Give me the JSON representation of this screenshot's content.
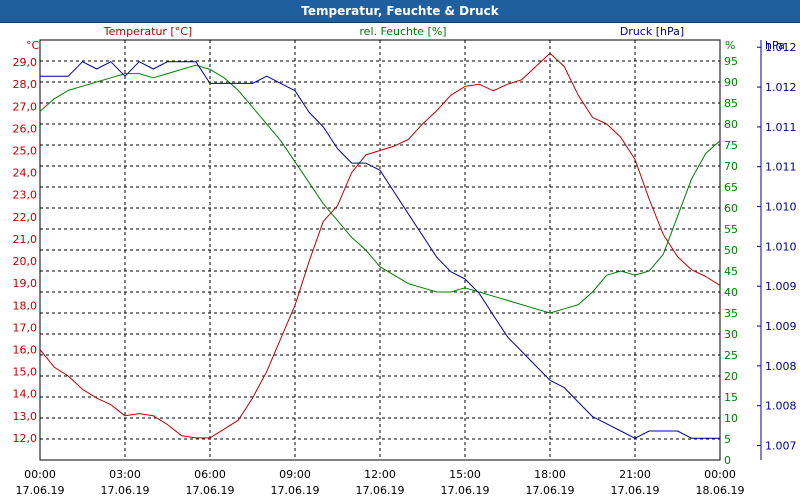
{
  "window": {
    "title": "Temperatur, Feuchte & Druck"
  },
  "chart_data": {
    "type": "line",
    "title": "Temperatur, Feuchte & Druck",
    "x_ticks": [
      {
        "time": "00:00",
        "date": "17.06.19"
      },
      {
        "time": "03:00",
        "date": "17.06.19"
      },
      {
        "time": "06:00",
        "date": "17.06.19"
      },
      {
        "time": "09:00",
        "date": "17.06.19"
      },
      {
        "time": "12:00",
        "date": "17.06.19"
      },
      {
        "time": "15:00",
        "date": "17.06.19"
      },
      {
        "time": "18:00",
        "date": "17.06.19"
      },
      {
        "time": "21:00",
        "date": "17.06.19"
      },
      {
        "time": "00:00",
        "date": "18.06.19"
      }
    ],
    "xlim_hours": [
      0,
      24
    ],
    "colors": {
      "temperature": "#c00000",
      "humidity": "#008000",
      "pressure": "#0000a0",
      "title_bar": "#1e5fa0",
      "grid": "#000000"
    },
    "axes": {
      "temperature": {
        "label": "Temperatur [°C]",
        "unit": "°C",
        "ylim": [
          11.0,
          30.0
        ],
        "ticks": [
          "12,0",
          "13,0",
          "14,0",
          "15,0",
          "16,0",
          "17,0",
          "18,0",
          "19,0",
          "20,0",
          "21,0",
          "22,0",
          "23,0",
          "24,0",
          "25,0",
          "26,0",
          "27,0",
          "28,0",
          "29,0"
        ],
        "tick_values": [
          12,
          13,
          14,
          15,
          16,
          17,
          18,
          19,
          20,
          21,
          22,
          23,
          24,
          25,
          26,
          27,
          28,
          29
        ]
      },
      "humidity": {
        "label": "rel. Feuchte [%]",
        "unit": "%",
        "ylim": [
          0,
          100
        ],
        "ticks": [
          "0",
          "5",
          "10",
          "15",
          "20",
          "25",
          "30",
          "35",
          "40",
          "45",
          "50",
          "55",
          "60",
          "65",
          "70",
          "75",
          "80",
          "85",
          "90",
          "95"
        ],
        "tick_values": [
          0,
          5,
          10,
          15,
          20,
          25,
          30,
          35,
          40,
          45,
          50,
          55,
          60,
          65,
          70,
          75,
          80,
          85,
          90,
          95
        ]
      },
      "pressure": {
        "label": "Druck [hPa]",
        "unit": "hPa",
        "ylim": [
          1006.8,
          1012.6
        ],
        "ticks": [
          "1.007",
          "1.008",
          "1.008",
          "1.009",
          "1.009",
          "1.010",
          "1.010",
          "1.011",
          "1.011",
          "1.012",
          "1.012"
        ],
        "tick_values": [
          1007.0,
          1007.55,
          1008.1,
          1008.65,
          1009.2,
          1009.75,
          1010.3,
          1010.85,
          1011.4,
          1011.95,
          1012.5
        ]
      }
    },
    "series": [
      {
        "name": "Temperatur",
        "axis": "temperature",
        "unit": "°C",
        "x": [
          0,
          0.5,
          1,
          1.5,
          2,
          2.5,
          3,
          3.5,
          4,
          4.5,
          5,
          5.5,
          6,
          6.5,
          7,
          7.5,
          8,
          8.5,
          9,
          9.5,
          10,
          10.5,
          11,
          11.5,
          12,
          12.5,
          13,
          13.5,
          14,
          14.5,
          15,
          15.5,
          16,
          16.5,
          17,
          17.5,
          18,
          18.5,
          19,
          19.5,
          20,
          20.5,
          21,
          21.5,
          22,
          22.5,
          23,
          23.5,
          24
        ],
        "values": [
          16.0,
          15.2,
          14.8,
          14.2,
          13.8,
          13.5,
          13.0,
          13.1,
          13.0,
          12.6,
          12.1,
          12.0,
          12.0,
          12.4,
          12.8,
          13.8,
          15.0,
          16.5,
          18.0,
          20.0,
          21.8,
          22.5,
          24.0,
          24.8,
          25.0,
          25.2,
          25.5,
          26.2,
          26.8,
          27.5,
          27.9,
          28.0,
          27.7,
          28.0,
          28.2,
          28.8,
          29.4,
          28.8,
          27.5,
          26.5,
          26.2,
          25.6,
          24.6,
          22.8,
          21.2,
          20.2,
          19.6,
          19.3,
          18.9
        ]
      },
      {
        "name": "rel. Feuchte",
        "axis": "humidity",
        "unit": "%",
        "x": [
          0,
          0.5,
          1,
          1.5,
          2,
          2.5,
          3,
          3.5,
          4,
          4.5,
          5,
          5.5,
          6,
          6.5,
          7,
          7.5,
          8,
          8.5,
          9,
          9.5,
          10,
          10.5,
          11,
          11.5,
          12,
          12.5,
          13,
          13.5,
          14,
          14.5,
          15,
          15.5,
          16,
          16.5,
          17,
          17.5,
          18,
          18.5,
          19,
          19.5,
          20,
          20.5,
          21,
          21.5,
          22,
          22.5,
          23,
          23.5,
          24
        ],
        "values": [
          83,
          86,
          88,
          89,
          90,
          91,
          92,
          92,
          91,
          92,
          93,
          94,
          93,
          91,
          88,
          84,
          80,
          76,
          71,
          66,
          61,
          57,
          53,
          50,
          46,
          44,
          42,
          41,
          40,
          40,
          41,
          40,
          39,
          38,
          37,
          36,
          35,
          36,
          37,
          40,
          44,
          45,
          44,
          45,
          49,
          58,
          67,
          73,
          76
        ]
      },
      {
        "name": "Druck",
        "axis": "pressure",
        "unit": "hPa",
        "x": [
          0,
          0.5,
          1,
          1.5,
          2,
          2.5,
          3,
          3.5,
          4,
          4.5,
          5,
          5.5,
          6,
          6.5,
          7,
          7.5,
          8,
          8.5,
          9,
          9.5,
          10,
          10.5,
          11,
          11.5,
          12,
          12.5,
          13,
          13.5,
          14,
          14.5,
          15,
          15.5,
          16,
          16.5,
          17,
          17.5,
          18,
          18.5,
          19,
          19.5,
          20,
          20.5,
          21,
          21.5,
          22,
          22.5,
          23,
          23.5,
          24
        ],
        "values": [
          1012.1,
          1012.1,
          1012.1,
          1012.3,
          1012.2,
          1012.3,
          1012.1,
          1012.3,
          1012.2,
          1012.3,
          1012.3,
          1012.3,
          1012.0,
          1012.0,
          1012.0,
          1012.0,
          1012.1,
          1012.0,
          1011.9,
          1011.6,
          1011.4,
          1011.1,
          1010.9,
          1010.9,
          1010.8,
          1010.5,
          1010.2,
          1009.9,
          1009.6,
          1009.4,
          1009.3,
          1009.1,
          1008.8,
          1008.5,
          1008.3,
          1008.1,
          1007.9,
          1007.8,
          1007.6,
          1007.4,
          1007.3,
          1007.2,
          1007.1,
          1007.2,
          1007.2,
          1007.2,
          1007.1,
          1007.1,
          1007.1
        ]
      }
    ]
  }
}
